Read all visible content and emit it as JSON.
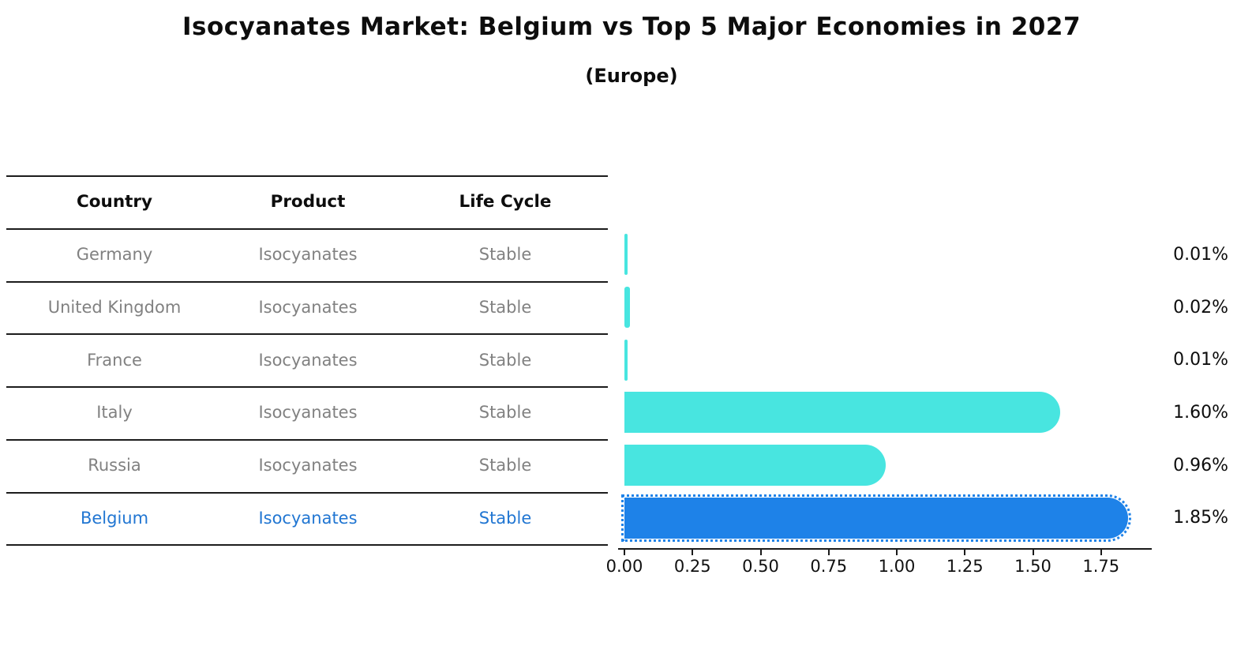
{
  "title": "Isocyanates Market: Belgium vs Top 5 Major Economies in 2027",
  "subtitle": "(Europe)",
  "table": {
    "headers": [
      "Country",
      "Product",
      "Life Cycle"
    ],
    "rows": [
      {
        "country": "Germany",
        "product": "Isocyanates",
        "life_cycle": "Stable",
        "highlight": false
      },
      {
        "country": "United Kingdom",
        "product": "Isocyanates",
        "life_cycle": "Stable",
        "highlight": false
      },
      {
        "country": "France",
        "product": "Isocyanates",
        "life_cycle": "Stable",
        "highlight": false
      },
      {
        "country": "Italy",
        "product": "Isocyanates",
        "life_cycle": "Stable",
        "highlight": false
      },
      {
        "country": "Russia",
        "product": "Isocyanates",
        "life_cycle": "Stable",
        "highlight": false
      },
      {
        "country": "Belgium",
        "product": "Isocyanates",
        "life_cycle": "Stable",
        "highlight": true
      }
    ]
  },
  "chart_data": {
    "type": "bar",
    "orientation": "horizontal",
    "title": "Isocyanates Market: Belgium vs Top 5 Major Economies in 2027 (Europe)",
    "categories": [
      "Germany",
      "United Kingdom",
      "France",
      "Italy",
      "Russia",
      "Belgium"
    ],
    "values": [
      0.01,
      0.02,
      0.01,
      1.6,
      0.96,
      1.85
    ],
    "value_labels": [
      "0.01%",
      "0.02%",
      "0.01%",
      "1.60%",
      "0.96%",
      "1.85%"
    ],
    "highlighted_category": "Belgium",
    "xticks": [
      "0.00",
      "0.25",
      "0.50",
      "0.75",
      "1.00",
      "1.25",
      "1.50",
      "1.75"
    ],
    "xtick_values": [
      0,
      0.25,
      0.5,
      0.75,
      1.0,
      1.25,
      1.5,
      1.75
    ],
    "xlim": [
      0,
      1.95
    ],
    "grid": false,
    "legend": null,
    "colors": {
      "default_bar": "#48E5E0",
      "highlight_bar": "#1E82E8",
      "highlight_text": "#2176D2",
      "row_text": "#818181",
      "header_text": "#0d0d0d",
      "axis": "#1a1a1a"
    }
  }
}
